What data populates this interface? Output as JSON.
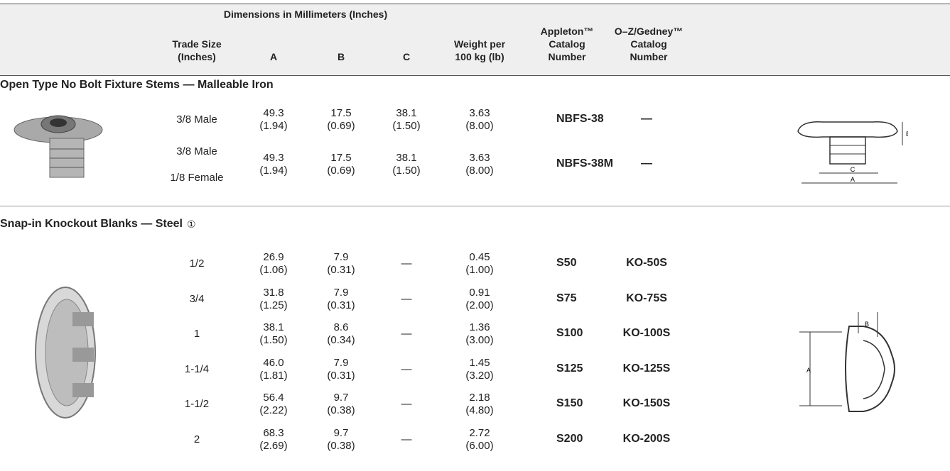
{
  "header": {
    "dimensions": "Dimensions in Millimeters (Inches)",
    "columns": [
      "Trade Size\n(Inches)",
      "A",
      "B",
      "C",
      "Weight per\n100 kg (lb)",
      "Appleton™\nCatalog\nNumber",
      "O–Z/Gedney™\nCatalog\nNumber"
    ]
  },
  "sections": [
    {
      "title": "Open Type No Bolt Fixture Stems — Malleable Iron",
      "rows": [
        [
          "3/8 Male",
          "49.3\n(1.94)",
          "17.5\n(0.69)",
          "38.1\n(1.50)",
          "3.63\n(8.00)",
          "NBFS-38",
          "—"
        ],
        [
          "3/8 Male\n1/8 Female",
          "49.3\n(1.94)",
          "17.5\n(0.69)",
          "38.1\n(1.50)",
          "3.63\n(8.00)",
          "NBFS-38M",
          "—"
        ]
      ]
    },
    {
      "title": "Snap-in Knockout Blanks — Steel",
      "note": "①",
      "rows": [
        [
          "1/2",
          "26.9\n(1.06)",
          "7.9\n(0.31)",
          "—",
          "0.45\n(1.00)",
          "S50",
          "KO-50S"
        ],
        [
          "3/4",
          "31.8\n(1.25)",
          "7.9\n(0.31)",
          "—",
          "0.91\n(2.00)",
          "S75",
          "KO-75S"
        ],
        [
          "1",
          "38.1\n(1.50)",
          "8.6\n(0.34)",
          "—",
          "1.36\n(3.00)",
          "S100",
          "KO-100S"
        ],
        [
          "1-1/4",
          "46.0\n(1.81)",
          "7.9\n(0.31)",
          "—",
          "1.45\n(3.20)",
          "S125",
          "KO-125S"
        ],
        [
          "1-1/2",
          "56.4\n(2.22)",
          "9.7\n(0.38)",
          "—",
          "2.18\n(4.80)",
          "S150",
          "KO-150S"
        ],
        [
          "2",
          "68.3\n(2.69)",
          "9.7\n(0.38)",
          "—",
          "2.72\n(6.00)",
          "S200",
          "KO-200S"
        ]
      ]
    }
  ]
}
